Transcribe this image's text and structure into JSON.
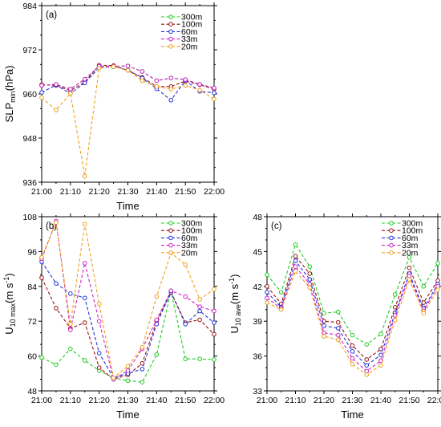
{
  "colors": {
    "300m": "#22cc22",
    "100m": "#991111",
    "60m": "#2233dd",
    "33m": "#cc22cc",
    "20m": "#f0a020"
  },
  "chart_data": [
    {
      "panel_label": "(a)",
      "type": "line",
      "xlabel": "Time",
      "ylabel": {
        "main": "SLP",
        "sub": "min",
        "unit": "(hPa)"
      },
      "x_ticks": [
        "21:00",
        "21:10",
        "21:20",
        "21:30",
        "21:40",
        "21:50",
        "22:00"
      ],
      "ylim": [
        936,
        984
      ],
      "y_ticks": [
        "936",
        "948",
        "960",
        "972",
        "984"
      ],
      "x": [
        0,
        5,
        10,
        15,
        20,
        25,
        30,
        35,
        40,
        45,
        50,
        55,
        60
      ],
      "series": [
        {
          "name": "300m",
          "color_key": "300m",
          "values": [
            962.3,
            962.6,
            961.3,
            964.0,
            967.5,
            967.5,
            967.6,
            966.1,
            963.6,
            964.3,
            963.9,
            962.6,
            961.6
          ]
        },
        {
          "name": "100m",
          "color_key": "100m",
          "values": [
            962.5,
            962.3,
            960.9,
            963.2,
            967.8,
            967.7,
            966.4,
            964.5,
            962.0,
            962.0,
            963.5,
            962.5,
            961.3
          ]
        },
        {
          "name": "60m",
          "color_key": "60m",
          "values": [
            960.4,
            962.4,
            960.1,
            963.0,
            967.1,
            967.4,
            966.5,
            964.3,
            961.4,
            958.3,
            963.6,
            960.7,
            960.3
          ]
        },
        {
          "name": "33m",
          "color_key": "33m",
          "values": [
            962.3,
            962.6,
            961.3,
            964.0,
            967.5,
            967.5,
            967.6,
            966.1,
            963.6,
            964.3,
            963.9,
            962.6,
            961.6
          ]
        },
        {
          "name": "20m",
          "color_key": "20m",
          "values": [
            959.0,
            955.6,
            960.1,
            937.6,
            967.0,
            967.4,
            966.4,
            963.6,
            962.0,
            961.3,
            962.3,
            961.0,
            958.6
          ]
        }
      ]
    },
    {
      "panel_label": "(b)",
      "type": "line",
      "xlabel": "Time",
      "ylabel": {
        "main": "U",
        "sub": "10 max",
        "unit": "(m s",
        "sup": "-1",
        "close": ")"
      },
      "x_ticks": [
        "21:00",
        "21:10",
        "21:20",
        "21:30",
        "21:40",
        "21:50",
        "22:00"
      ],
      "ylim": [
        48,
        108
      ],
      "y_ticks": [
        "48",
        "60",
        "72",
        "84",
        "96",
        "108"
      ],
      "x": [
        0,
        5,
        10,
        15,
        20,
        25,
        30,
        35,
        40,
        45,
        50,
        55,
        60
      ],
      "series": [
        {
          "name": "300m",
          "color_key": "300m",
          "values": [
            59.5,
            57.0,
            62.5,
            58.5,
            55.0,
            52.5,
            51.5,
            51.0,
            60.5,
            82.5,
            59.0,
            59.0,
            58.8
          ]
        },
        {
          "name": "100m",
          "color_key": "100m",
          "values": [
            87.0,
            76.5,
            69.5,
            71.5,
            56.0,
            52.0,
            53.5,
            57.5,
            72.0,
            82.0,
            71.5,
            72.5,
            67.5
          ]
        },
        {
          "name": "60m",
          "color_key": "60m",
          "values": [
            92.5,
            85.0,
            81.5,
            80.0,
            61.0,
            52.5,
            54.0,
            55.5,
            71.0,
            82.0,
            71.0,
            75.5,
            71.5
          ]
        },
        {
          "name": "33m",
          "color_key": "33m",
          "values": [
            93.5,
            106.5,
            69.0,
            92.0,
            72.0,
            52.0,
            55.0,
            62.5,
            72.5,
            82.5,
            80.5,
            77.0,
            75.5
          ]
        },
        {
          "name": "20m",
          "color_key": "20m",
          "values": [
            94.0,
            106.0,
            71.0,
            105.5,
            78.0,
            52.5,
            56.5,
            63.0,
            80.5,
            95.5,
            91.5,
            79.5,
            83.0
          ]
        }
      ]
    },
    {
      "panel_label": "(c)",
      "type": "line",
      "xlabel": "Time",
      "ylabel": {
        "main": "U",
        "sub": "10 ave",
        "unit": "(m s",
        "sup": "-1",
        "close": ")"
      },
      "x_ticks": [
        "21:00",
        "21:10",
        "21:20",
        "21:30",
        "21:40",
        "21:50",
        "22:00"
      ],
      "ylim": [
        33,
        48
      ],
      "y_ticks": [
        "33",
        "36",
        "39",
        "42",
        "45",
        "48"
      ],
      "x": [
        0,
        5,
        10,
        15,
        20,
        25,
        30,
        35,
        40,
        45,
        50,
        55,
        60
      ],
      "series": [
        {
          "name": "300m",
          "color_key": "300m",
          "values": [
            43.0,
            41.5,
            45.6,
            43.7,
            39.7,
            39.8,
            37.8,
            37.0,
            37.9,
            41.3,
            44.5,
            42.0,
            44.0
          ]
        },
        {
          "name": "100m",
          "color_key": "100m",
          "values": [
            42.0,
            40.5,
            44.6,
            43.1,
            39.0,
            38.9,
            36.9,
            35.7,
            36.6,
            40.2,
            43.6,
            40.6,
            42.5
          ]
        },
        {
          "name": "60m",
          "color_key": "60m",
          "values": [
            41.5,
            40.2,
            44.2,
            42.6,
            38.6,
            38.4,
            36.4,
            35.2,
            36.1,
            39.7,
            43.1,
            40.1,
            42.2
          ]
        },
        {
          "name": "33m",
          "color_key": "33m",
          "values": [
            41.0,
            40.1,
            43.7,
            42.2,
            38.0,
            37.8,
            35.8,
            34.7,
            35.6,
            39.5,
            42.9,
            39.9,
            42.0
          ]
        },
        {
          "name": "20m",
          "color_key": "20m",
          "values": [
            40.6,
            40.0,
            43.3,
            41.9,
            37.7,
            37.4,
            35.3,
            34.4,
            35.2,
            39.1,
            42.6,
            39.7,
            41.7
          ]
        }
      ]
    }
  ]
}
